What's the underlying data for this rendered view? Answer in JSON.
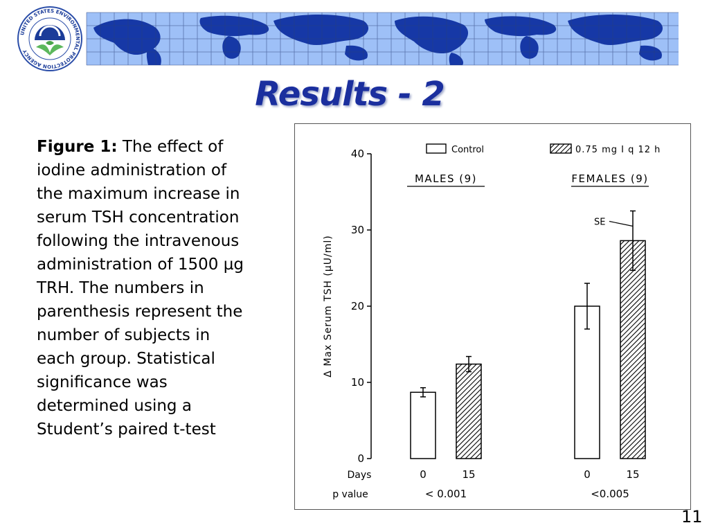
{
  "slide": {
    "title": "Results - 2",
    "number": "11",
    "logo_text": "UNITED STATES ENVIRONMENTAL PROTECTION AGENCY"
  },
  "caption": {
    "label": "Figure 1:",
    "text": "The effect of iodine administration of the maximum increase in serum TSH concentration following the intravenous administration of 1500 µg TRH. The numbers in parenthesis represent the number of subjects in each group. Statistical significance was determined using a Student’s paired t-test"
  },
  "chart_data": {
    "type": "bar",
    "ylabel": "Δ Max Serum TSH (µU/ml)",
    "ylim": [
      0,
      40
    ],
    "yticks": [
      0,
      10,
      20,
      30,
      40
    ],
    "legend": {
      "control": "Control",
      "treated": "0.75 mg I q 12 h",
      "placement": "top"
    },
    "groups": [
      {
        "name": "MALES (9)",
        "p_value": "< 0.001",
        "bars": [
          {
            "day": "0",
            "value": 8.7,
            "se": 0.6,
            "pattern": "control"
          },
          {
            "day": "15",
            "value": 12.4,
            "se": 1.0,
            "pattern": "treated"
          }
        ]
      },
      {
        "name": "FEMALES (9)",
        "p_value": "<0.005",
        "bars": [
          {
            "day": "0",
            "value": 20.0,
            "se": 3.0,
            "pattern": "control"
          },
          {
            "day": "15",
            "value": 28.6,
            "se": 3.9,
            "pattern": "treated"
          }
        ]
      }
    ],
    "row_labels": {
      "days": "Days",
      "p_value": "p  value"
    },
    "annotation": "SE",
    "grid": false
  }
}
